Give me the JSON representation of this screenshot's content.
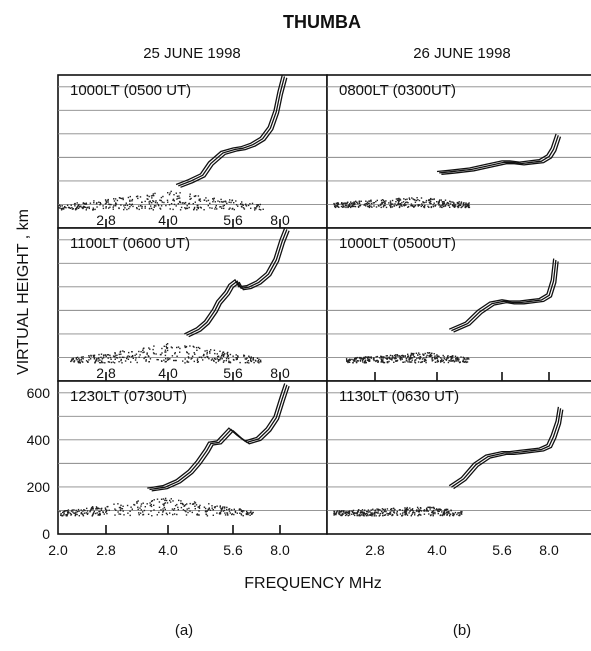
{
  "chart_data": {
    "type": "scatter",
    "title": "THUMBA",
    "xlabel": "FREQUENCY  MHz",
    "ylabel": "VIRTUAL  HEIGHT , km",
    "columns": [
      {
        "date": "25 JUNE 1998",
        "caption": "(a)"
      },
      {
        "date": "26 JUNE 1998",
        "caption": "(b)"
      }
    ],
    "x_ticks": [
      "2.0",
      "2.8",
      "4.0",
      "5.6",
      "8.0"
    ],
    "x_tick_values": [
      2.0,
      2.8,
      4.0,
      5.6,
      8.0
    ],
    "y_ticks": [
      "0",
      "200",
      "400",
      "600"
    ],
    "y_tick_values": [
      0,
      200,
      400,
      600
    ],
    "xlim": [
      2.0,
      10.0
    ],
    "ylim": [
      0,
      650
    ],
    "grid": true,
    "panels": [
      {
        "label": "1000LT (0500 UT)",
        "column": 0,
        "row": 0,
        "show_x_ticks": true,
        "noise": {
          "h": 100,
          "fmin": 2.0,
          "fmax": 7.2,
          "fpeak": 4.1,
          "hpeak": 160
        },
        "trace": [
          [
            4.2,
            185
          ],
          [
            4.5,
            205
          ],
          [
            4.8,
            230
          ],
          [
            5.0,
            280
          ],
          [
            5.3,
            325
          ],
          [
            5.6,
            340
          ],
          [
            6.0,
            345
          ],
          [
            6.5,
            360
          ],
          [
            7.0,
            385
          ],
          [
            7.4,
            430
          ],
          [
            7.7,
            500
          ],
          [
            7.9,
            580
          ],
          [
            8.1,
            650
          ]
        ]
      },
      {
        "label": "0800LT (0300UT)",
        "column": 1,
        "row": 0,
        "show_x_ticks": false,
        "noise": {
          "h": 110,
          "fmin": 2.1,
          "fmax": 4.8,
          "fpeak": 3.6,
          "hpeak": 135
        },
        "trace": [
          [
            4.0,
            240
          ],
          [
            4.3,
            245
          ],
          [
            4.8,
            255
          ],
          [
            5.2,
            270
          ],
          [
            5.6,
            285
          ],
          [
            6.0,
            285
          ],
          [
            6.5,
            280
          ],
          [
            7.0,
            285
          ],
          [
            7.5,
            290
          ],
          [
            7.9,
            310
          ],
          [
            8.1,
            340
          ],
          [
            8.3,
            400
          ]
        ]
      },
      {
        "label": "1100LT (0600 UT)",
        "column": 0,
        "row": 1,
        "show_x_ticks": true,
        "noise": {
          "h": 100,
          "fmin": 2.2,
          "fmax": 7.0,
          "fpeak": 4.1,
          "hpeak": 165
        },
        "trace": [
          [
            4.4,
            200
          ],
          [
            4.7,
            225
          ],
          [
            4.9,
            255
          ],
          [
            5.1,
            305
          ],
          [
            5.2,
            340
          ],
          [
            5.4,
            380
          ],
          [
            5.5,
            410
          ],
          [
            5.7,
            430
          ],
          [
            5.9,
            400
          ],
          [
            6.3,
            405
          ],
          [
            6.8,
            425
          ],
          [
            7.3,
            460
          ],
          [
            7.7,
            520
          ],
          [
            8.0,
            600
          ],
          [
            8.2,
            650
          ]
        ]
      },
      {
        "label": "1000LT (0500UT)",
        "column": 1,
        "row": 1,
        "show_x_ticks": true,
        "noise": {
          "h": 100,
          "fmin": 2.3,
          "fmax": 4.8,
          "fpeak": 3.8,
          "hpeak": 125
        },
        "trace": [
          [
            4.3,
            220
          ],
          [
            4.7,
            250
          ],
          [
            5.0,
            300
          ],
          [
            5.3,
            335
          ],
          [
            5.6,
            345
          ],
          [
            6.0,
            340
          ],
          [
            6.5,
            340
          ],
          [
            7.0,
            345
          ],
          [
            7.5,
            350
          ],
          [
            7.9,
            370
          ],
          [
            8.1,
            430
          ],
          [
            8.2,
            520
          ]
        ]
      },
      {
        "label": "1230LT (0730UT)",
        "column": 0,
        "row": 2,
        "show_x_ticks": true,
        "noise": {
          "h": 100,
          "fmin": 2.0,
          "fmax": 6.6,
          "fpeak": 4.0,
          "hpeak": 160
        },
        "trace": [
          [
            3.6,
            195
          ],
          [
            3.9,
            205
          ],
          [
            4.2,
            230
          ],
          [
            4.5,
            270
          ],
          [
            4.7,
            310
          ],
          [
            4.9,
            360
          ],
          [
            5.0,
            390
          ],
          [
            5.2,
            395
          ],
          [
            5.5,
            450
          ],
          [
            5.8,
            420
          ],
          [
            6.2,
            395
          ],
          [
            6.8,
            410
          ],
          [
            7.3,
            450
          ],
          [
            7.7,
            500
          ],
          [
            8.0,
            580
          ],
          [
            8.2,
            640
          ]
        ]
      },
      {
        "label": "1130LT (0630 UT)",
        "column": 1,
        "row": 2,
        "show_x_ticks": false,
        "noise": {
          "h": 100,
          "fmin": 2.1,
          "fmax": 4.6,
          "fpeak": 3.8,
          "hpeak": 120
        },
        "trace": [
          [
            4.3,
            205
          ],
          [
            4.6,
            240
          ],
          [
            4.9,
            300
          ],
          [
            5.2,
            335
          ],
          [
            5.6,
            350
          ],
          [
            6.0,
            350
          ],
          [
            6.5,
            355
          ],
          [
            7.0,
            360
          ],
          [
            7.5,
            365
          ],
          [
            7.9,
            380
          ],
          [
            8.1,
            420
          ],
          [
            8.3,
            480
          ],
          [
            8.4,
            540
          ]
        ]
      }
    ]
  }
}
